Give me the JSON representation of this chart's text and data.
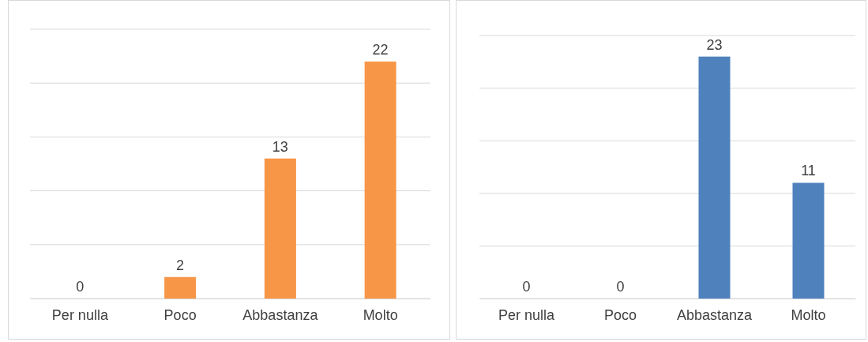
{
  "chart_data": [
    {
      "type": "bar",
      "categories": [
        "Per nulla",
        "Poco",
        "Abbastanza",
        "Molto"
      ],
      "values": [
        0,
        2,
        13,
        22
      ],
      "color": "#f79646",
      "ylim": [
        0,
        25
      ],
      "yticks": [
        {
          "value": 0,
          "label": null
        },
        {
          "value": 5,
          "label": null
        },
        {
          "value": 10,
          "label": null
        },
        {
          "value": 15,
          "label": null
        },
        {
          "value": 20,
          "label": null
        },
        {
          "value": 25,
          "label": null
        }
      ],
      "grid": "y",
      "tick_labels": "x",
      "data_labels": true
    },
    {
      "type": "bar",
      "categories": [
        "Per nulla",
        "Poco",
        "Abbastanza",
        "Molto"
      ],
      "values": [
        0,
        0,
        23,
        11
      ],
      "color": "#4f81bd",
      "ylim": [
        0,
        25
      ],
      "yticks": [
        {
          "value": 0,
          "label": null
        },
        {
          "value": 5,
          "label": null
        },
        {
          "value": 10,
          "label": null
        },
        {
          "value": 15,
          "label": null
        },
        {
          "value": 20,
          "label": null
        },
        {
          "value": 25,
          "label": null
        }
      ],
      "grid": "y",
      "tick_labels": "x",
      "data_labels": true
    }
  ]
}
